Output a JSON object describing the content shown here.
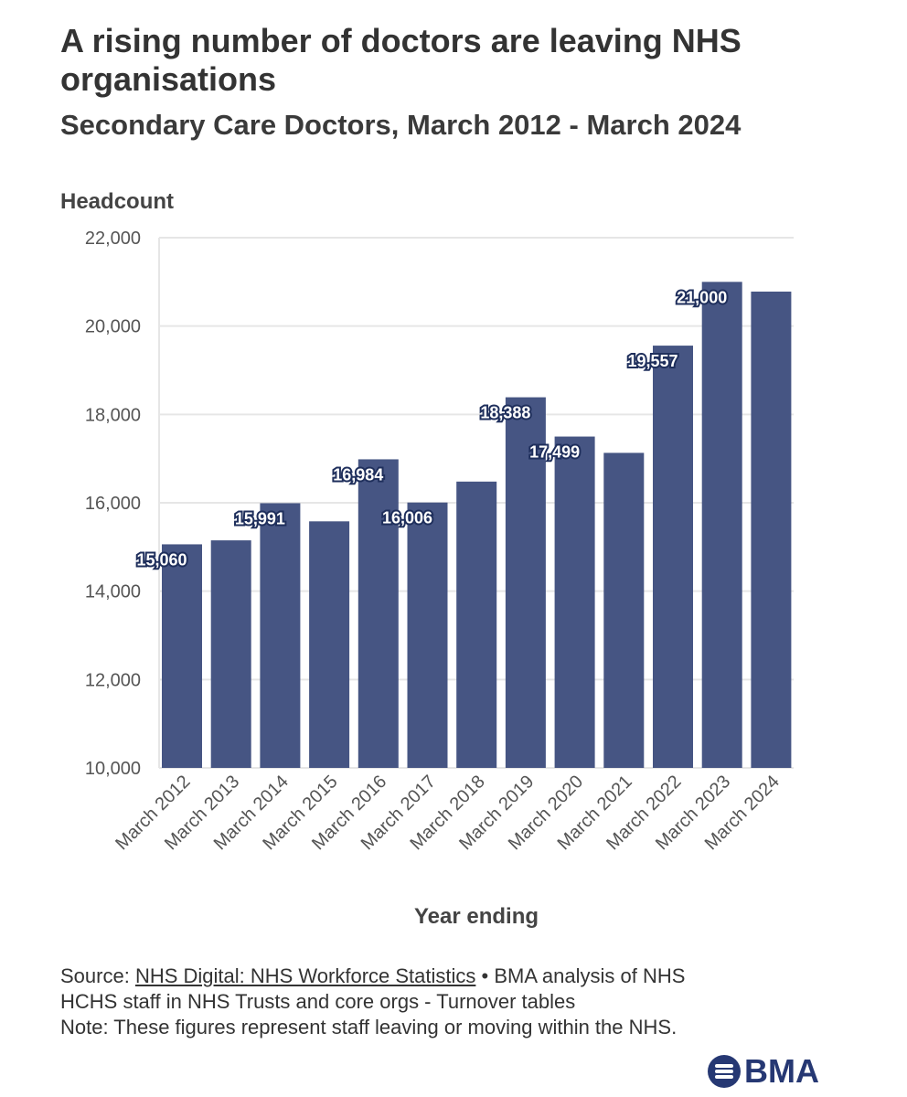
{
  "title": "A rising number of doctors are leaving NHS organisations",
  "subtitle": "Secondary Care Doctors, March 2012 - March 2024",
  "chart_data": {
    "type": "bar",
    "ylabel": "Headcount",
    "xlabel": "Year ending",
    "ylim": [
      10000,
      22000
    ],
    "yticks": [
      10000,
      12000,
      14000,
      16000,
      18000,
      20000,
      22000
    ],
    "ytick_labels": [
      "10,000",
      "12,000",
      "14,000",
      "16,000",
      "18,000",
      "20,000",
      "22,000"
    ],
    "categories": [
      "March 2012",
      "March 2013",
      "March 2014",
      "March 2015",
      "March 2016",
      "March 2017",
      "March 2018",
      "March 2019",
      "March 2020",
      "March 2021",
      "March 2022",
      "March 2023",
      "March 2024"
    ],
    "values": [
      15060,
      15150,
      15991,
      15580,
      16984,
      16006,
      16480,
      18388,
      17499,
      17130,
      19557,
      21000,
      20780
    ],
    "data_labels": [
      "15,060",
      "",
      "15,991",
      "",
      "16,984",
      "16,006",
      "",
      "18,388",
      "17,499",
      "",
      "19,557",
      "21,000",
      ""
    ],
    "bar_color": "#465583",
    "label_outline_color": "#1f2f5c",
    "grid": true
  },
  "footer": {
    "source_prefix": "Source: ",
    "source_link": "NHS Digital: NHS Workforce Statistics",
    "source_rest": " • BMA analysis of NHS HCHS staff in NHS Trusts and core orgs - Turnover tables",
    "note": "Note: These figures represent staff leaving or moving within the NHS."
  },
  "logo": {
    "text": "BMA",
    "color": "#263873"
  }
}
